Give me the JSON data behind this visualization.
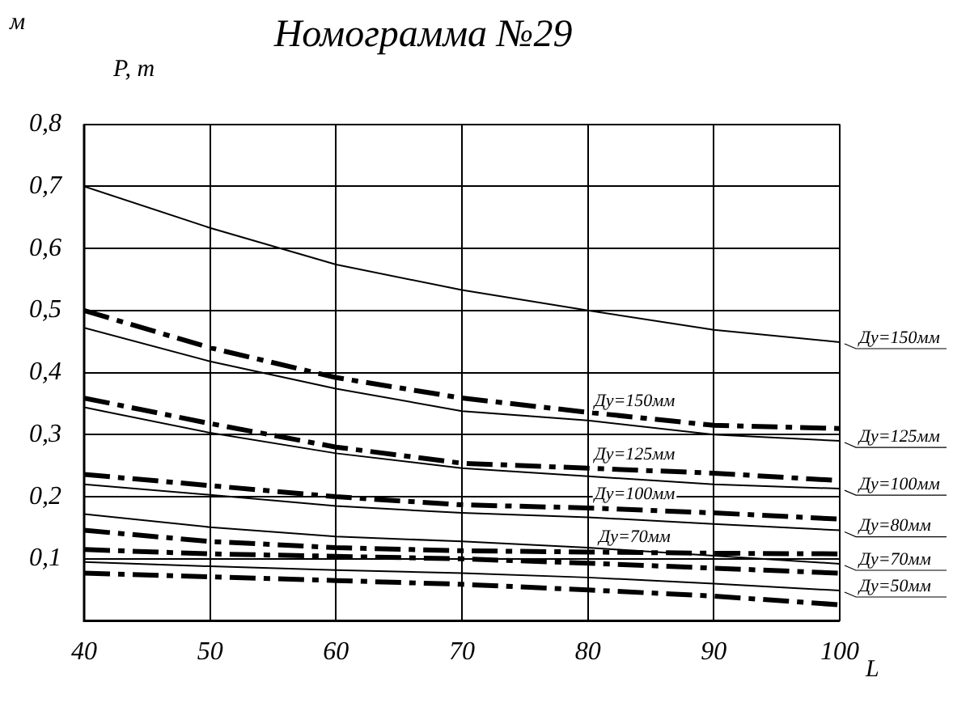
{
  "chart_data": {
    "type": "line",
    "title": "Номограмма №29",
    "ylabel": "P, т",
    "xlabel": "L",
    "annotations": [
      "м"
    ],
    "x": [
      40,
      50,
      60,
      70,
      80,
      90,
      100
    ],
    "xlim": [
      40,
      100
    ],
    "xticks": [
      40,
      50,
      60,
      70,
      80,
      90,
      100
    ],
    "ylim": [
      0,
      0.8
    ],
    "yticks": [
      {
        "value": 0,
        "label": null
      },
      {
        "value": 0.1,
        "label": "0,1"
      },
      {
        "value": 0.2,
        "label": "0,2"
      },
      {
        "value": 0.3,
        "label": "0,3"
      },
      {
        "value": 0.4,
        "label": "0,4"
      },
      {
        "value": 0.5,
        "label": "0,5"
      },
      {
        "value": 0.6,
        "label": "0,6"
      },
      {
        "value": 0.7,
        "label": "0,7"
      },
      {
        "value": 0.8,
        "label": "0,8"
      }
    ],
    "grid": true,
    "legend": false,
    "marker": "none",
    "series": [
      {
        "name": "Ду=150мм",
        "color": "#000000",
        "line_style": "solid",
        "values": [
          0.7,
          0.633,
          0.574,
          0.533,
          0.5,
          0.469,
          0.449
        ]
      },
      {
        "name": "Ду=150мм",
        "color": "#000000",
        "line_style": "dashed",
        "values": [
          0.5,
          0.44,
          0.392,
          0.359,
          0.336,
          0.315,
          0.31
        ]
      },
      {
        "name": "Ду=125мм",
        "color": "#000000",
        "line_style": "solid",
        "values": [
          0.472,
          0.418,
          0.374,
          0.338,
          0.323,
          0.3,
          0.29
        ]
      },
      {
        "name": "Ду=125мм",
        "color": "#000000",
        "line_style": "dashed",
        "values": [
          0.359,
          0.318,
          0.28,
          0.254,
          0.246,
          0.238,
          0.226
        ]
      },
      {
        "name": "Ду=100мм",
        "color": "#000000",
        "line_style": "solid",
        "values": [
          0.344,
          0.303,
          0.27,
          0.246,
          0.233,
          0.22,
          0.213
        ]
      },
      {
        "name": "Ду=100мм",
        "color": "#000000",
        "line_style": "dashed",
        "values": [
          0.236,
          0.218,
          0.2,
          0.187,
          0.182,
          0.174,
          0.164
        ]
      },
      {
        "name": "Ду=80мм",
        "color": "#000000",
        "line_style": "solid",
        "values": [
          0.22,
          0.203,
          0.185,
          0.174,
          0.167,
          0.156,
          0.146
        ]
      },
      {
        "name": "Ду=70мм",
        "color": "#000000",
        "line_style": "solid",
        "values": [
          0.172,
          0.151,
          0.136,
          0.128,
          0.118,
          0.105,
          0.092
        ]
      },
      {
        "name": "Ду=70мм",
        "color": "#000000",
        "line_style": "dashed",
        "values": [
          0.146,
          0.128,
          0.118,
          0.113,
          0.111,
          0.109,
          0.108
        ]
      },
      {
        "color": "#000000",
        "line_style": "dashed",
        "values": [
          0.115,
          0.108,
          0.104,
          0.1,
          0.093,
          0.085,
          0.077
        ]
      },
      {
        "name": "Ду=50мм",
        "color": "#000000",
        "line_style": "solid",
        "values": [
          0.095,
          0.088,
          0.082,
          0.077,
          0.07,
          0.06,
          0.049
        ]
      },
      {
        "color": "#000000",
        "line_style": "dashed",
        "values": [
          0.077,
          0.071,
          0.065,
          0.059,
          0.05,
          0.04,
          0.026
        ]
      }
    ]
  }
}
